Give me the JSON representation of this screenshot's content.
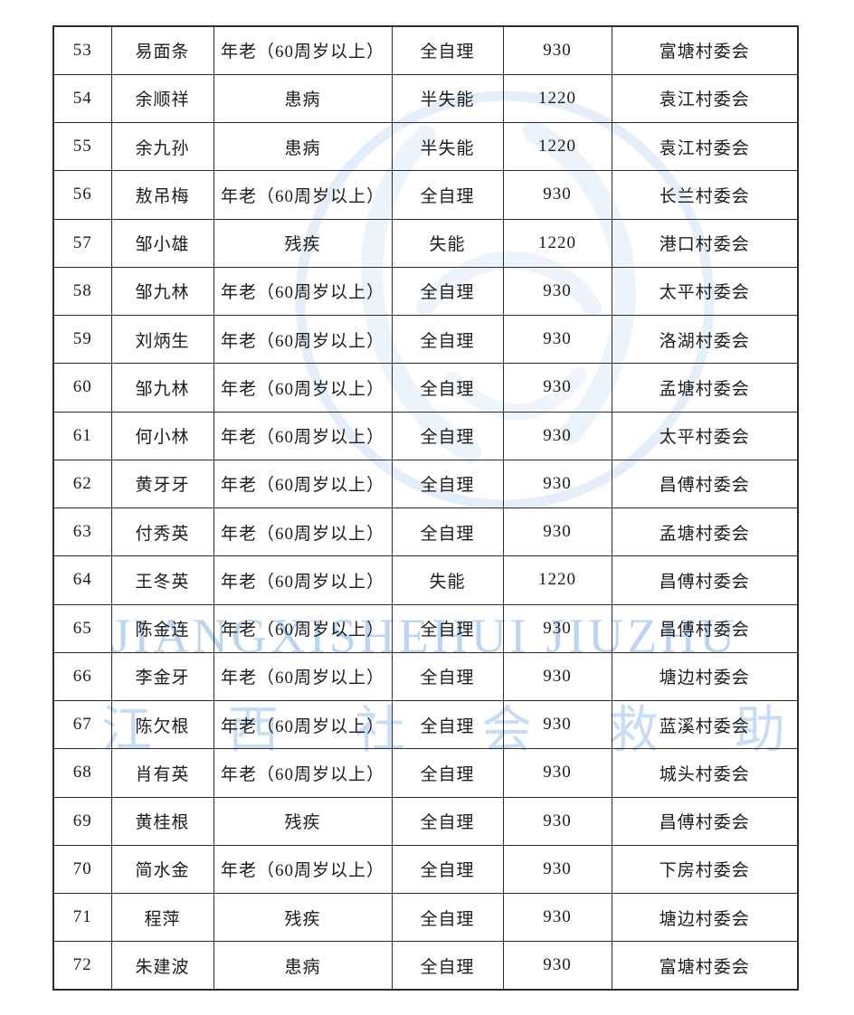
{
  "watermark": {
    "latin": "JIANGXISHEHUI JIUZHU",
    "chinese": [
      "江",
      "西",
      "社",
      "会",
      "救",
      "助"
    ],
    "colors": {
      "latin_text": "#b9d5f2",
      "chinese_text": "#c6ddf5",
      "emblem": "#dfecfa"
    }
  },
  "table": {
    "rows": [
      {
        "no": "53",
        "name": "易面条",
        "reason": "年老（60周岁以上）",
        "ability": "全自理",
        "amount": "930",
        "village": "富塘村委会"
      },
      {
        "no": "54",
        "name": "余顺祥",
        "reason": "患病",
        "ability": "半失能",
        "amount": "1220",
        "village": "袁江村委会"
      },
      {
        "no": "55",
        "name": "余九孙",
        "reason": "患病",
        "ability": "半失能",
        "amount": "1220",
        "village": "袁江村委会"
      },
      {
        "no": "56",
        "name": "敖吊梅",
        "reason": "年老（60周岁以上）",
        "ability": "全自理",
        "amount": "930",
        "village": "长兰村委会"
      },
      {
        "no": "57",
        "name": "邹小雄",
        "reason": "残疾",
        "ability": "失能",
        "amount": "1220",
        "village": "港口村委会"
      },
      {
        "no": "58",
        "name": "邹九林",
        "reason": "年老（60周岁以上）",
        "ability": "全自理",
        "amount": "930",
        "village": "太平村委会"
      },
      {
        "no": "59",
        "name": "刘炳生",
        "reason": "年老（60周岁以上）",
        "ability": "全自理",
        "amount": "930",
        "village": "洛湖村委会"
      },
      {
        "no": "60",
        "name": "邹九林",
        "reason": "年老（60周岁以上）",
        "ability": "全自理",
        "amount": "930",
        "village": "孟塘村委会"
      },
      {
        "no": "61",
        "name": "何小林",
        "reason": "年老（60周岁以上）",
        "ability": "全自理",
        "amount": "930",
        "village": "太平村委会"
      },
      {
        "no": "62",
        "name": "黄牙牙",
        "reason": "年老（60周岁以上）",
        "ability": "全自理",
        "amount": "930",
        "village": "昌傅村委会"
      },
      {
        "no": "63",
        "name": "付秀英",
        "reason": "年老（60周岁以上）",
        "ability": "全自理",
        "amount": "930",
        "village": "孟塘村委会"
      },
      {
        "no": "64",
        "name": "王冬英",
        "reason": "年老（60周岁以上）",
        "ability": "失能",
        "amount": "1220",
        "village": "昌傅村委会"
      },
      {
        "no": "65",
        "name": "陈金连",
        "reason": "年老（60周岁以上）",
        "ability": "全自理",
        "amount": "930",
        "village": "昌傅村委会"
      },
      {
        "no": "66",
        "name": "李金牙",
        "reason": "年老（60周岁以上）",
        "ability": "全自理",
        "amount": "930",
        "village": "塘边村委会"
      },
      {
        "no": "67",
        "name": "陈欠根",
        "reason": "年老（60周岁以上）",
        "ability": "全自理",
        "amount": "930",
        "village": "蓝溪村委会"
      },
      {
        "no": "68",
        "name": "肖有英",
        "reason": "年老（60周岁以上）",
        "ability": "全自理",
        "amount": "930",
        "village": "城头村委会"
      },
      {
        "no": "69",
        "name": "黄桂根",
        "reason": "残疾",
        "ability": "全自理",
        "amount": "930",
        "village": "昌傅村委会"
      },
      {
        "no": "70",
        "name": "简水金",
        "reason": "年老（60周岁以上）",
        "ability": "全自理",
        "amount": "930",
        "village": "下房村委会"
      },
      {
        "no": "71",
        "name": "程萍",
        "reason": "残疾",
        "ability": "全自理",
        "amount": "930",
        "village": "塘边村委会"
      },
      {
        "no": "72",
        "name": "朱建波",
        "reason": "患病",
        "ability": "全自理",
        "amount": "930",
        "village": "富塘村委会"
      }
    ]
  }
}
